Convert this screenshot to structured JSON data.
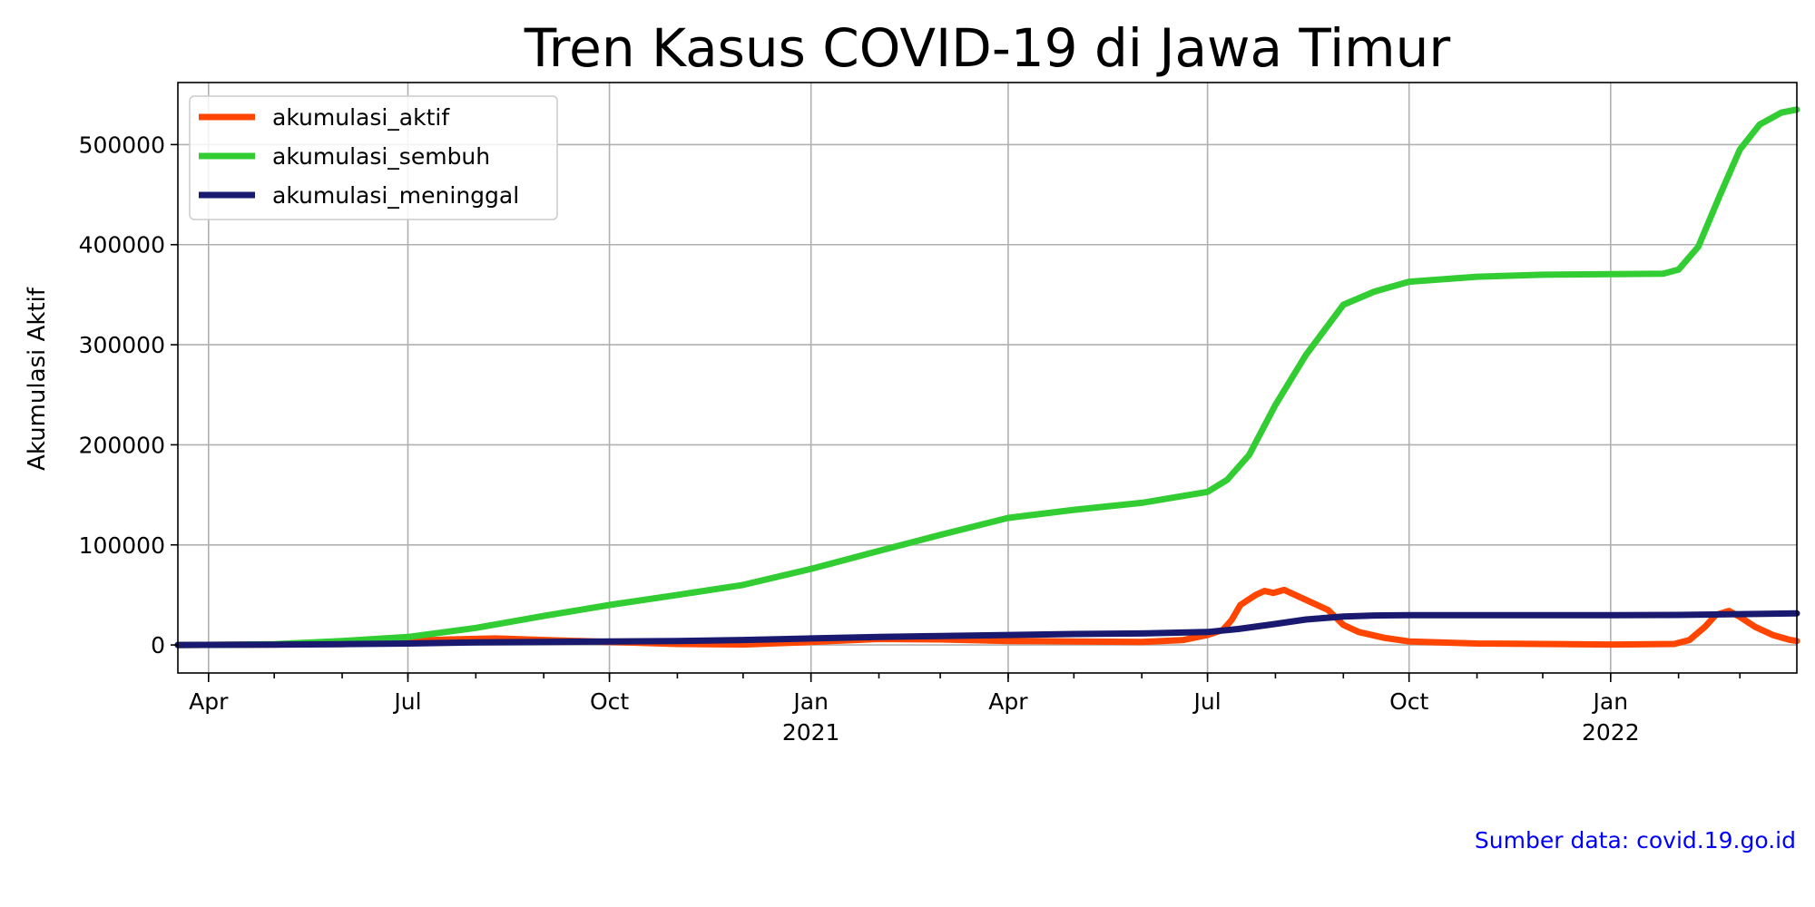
{
  "source_text": "Sumber data: covid.19.go.id",
  "source_color": "#0000ff",
  "chart_data": {
    "type": "line",
    "title": "Tren Kasus COVID-19 di Jawa Timur",
    "xlabel": "",
    "ylabel": "Akumulasi Aktif",
    "x_range": [
      "2020-03-18",
      "2022-03-27"
    ],
    "ylim": [
      -28000,
      562000
    ],
    "grid": true,
    "legend_position": "top-left",
    "x_ticks": [
      {
        "date": "2020-04-01",
        "label": "Apr",
        "year": ""
      },
      {
        "date": "2020-07-01",
        "label": "Jul",
        "year": ""
      },
      {
        "date": "2020-10-01",
        "label": "Oct",
        "year": ""
      },
      {
        "date": "2021-01-01",
        "label": "Jan",
        "year": "2021"
      },
      {
        "date": "2021-04-01",
        "label": "Apr",
        "year": ""
      },
      {
        "date": "2021-07-01",
        "label": "Jul",
        "year": ""
      },
      {
        "date": "2021-10-01",
        "label": "Oct",
        "year": ""
      },
      {
        "date": "2022-01-01",
        "label": "Jan",
        "year": "2022"
      }
    ],
    "y_ticks": [
      0,
      100000,
      200000,
      300000,
      400000,
      500000
    ],
    "series": [
      {
        "name": "akumulasi_aktif",
        "color": "#ff4500",
        "points": [
          [
            "2020-03-18",
            0
          ],
          [
            "2020-05-01",
            500
          ],
          [
            "2020-06-01",
            2000
          ],
          [
            "2020-07-01",
            4000
          ],
          [
            "2020-07-20",
            5500
          ],
          [
            "2020-08-10",
            6500
          ],
          [
            "2020-09-01",
            5000
          ],
          [
            "2020-10-01",
            3000
          ],
          [
            "2020-11-01",
            1000
          ],
          [
            "2020-12-01",
            500
          ],
          [
            "2021-01-01",
            3000
          ],
          [
            "2021-02-01",
            6000
          ],
          [
            "2021-03-01",
            5500
          ],
          [
            "2021-04-01",
            4000
          ],
          [
            "2021-05-01",
            3500
          ],
          [
            "2021-06-01",
            3000
          ],
          [
            "2021-06-20",
            5000
          ],
          [
            "2021-07-01",
            10000
          ],
          [
            "2021-07-08",
            15000
          ],
          [
            "2021-07-12",
            25000
          ],
          [
            "2021-07-16",
            40000
          ],
          [
            "2021-07-23",
            50000
          ],
          [
            "2021-07-27",
            54000
          ],
          [
            "2021-07-31",
            52000
          ],
          [
            "2021-08-05",
            55000
          ],
          [
            "2021-08-10",
            50000
          ],
          [
            "2021-08-18",
            42000
          ],
          [
            "2021-08-25",
            35000
          ],
          [
            "2021-09-01",
            20000
          ],
          [
            "2021-09-08",
            13000
          ],
          [
            "2021-09-20",
            7000
          ],
          [
            "2021-10-01",
            3500
          ],
          [
            "2021-11-01",
            1500
          ],
          [
            "2021-12-01",
            1000
          ],
          [
            "2022-01-01",
            500
          ],
          [
            "2022-01-30",
            1000
          ],
          [
            "2022-02-06",
            5000
          ],
          [
            "2022-02-13",
            18000
          ],
          [
            "2022-02-18",
            30000
          ],
          [
            "2022-02-24",
            34000
          ],
          [
            "2022-03-01",
            28000
          ],
          [
            "2022-03-08",
            18000
          ],
          [
            "2022-03-16",
            10000
          ],
          [
            "2022-03-24",
            5000
          ],
          [
            "2022-03-27",
            4000
          ]
        ]
      },
      {
        "name": "akumulasi_sembuh",
        "color": "#32cd32",
        "points": [
          [
            "2020-03-18",
            0
          ],
          [
            "2020-04-15",
            300
          ],
          [
            "2020-05-01",
            800
          ],
          [
            "2020-06-01",
            4000
          ],
          [
            "2020-07-01",
            8000
          ],
          [
            "2020-08-01",
            17000
          ],
          [
            "2020-09-01",
            29000
          ],
          [
            "2020-10-01",
            40000
          ],
          [
            "2020-11-01",
            50000
          ],
          [
            "2020-12-01",
            60000
          ],
          [
            "2021-01-01",
            76000
          ],
          [
            "2021-02-01",
            94000
          ],
          [
            "2021-03-01",
            110000
          ],
          [
            "2021-04-01",
            127000
          ],
          [
            "2021-05-01",
            135000
          ],
          [
            "2021-06-01",
            142000
          ],
          [
            "2021-07-01",
            153000
          ],
          [
            "2021-07-10",
            165000
          ],
          [
            "2021-07-20",
            190000
          ],
          [
            "2021-08-01",
            240000
          ],
          [
            "2021-08-15",
            290000
          ],
          [
            "2021-09-01",
            340000
          ],
          [
            "2021-09-15",
            353000
          ],
          [
            "2021-10-01",
            363000
          ],
          [
            "2021-11-01",
            368000
          ],
          [
            "2021-12-01",
            370000
          ],
          [
            "2022-01-01",
            370500
          ],
          [
            "2022-01-25",
            371000
          ],
          [
            "2022-02-01",
            375000
          ],
          [
            "2022-02-10",
            398000
          ],
          [
            "2022-02-20",
            450000
          ],
          [
            "2022-03-01",
            495000
          ],
          [
            "2022-03-10",
            520000
          ],
          [
            "2022-03-20",
            532000
          ],
          [
            "2022-03-27",
            535000
          ]
        ]
      },
      {
        "name": "akumulasi_meninggal",
        "color": "#191970",
        "points": [
          [
            "2020-03-18",
            0
          ],
          [
            "2020-05-01",
            300
          ],
          [
            "2020-06-01",
            800
          ],
          [
            "2020-07-01",
            1500
          ],
          [
            "2020-08-01",
            2500
          ],
          [
            "2020-09-01",
            3000
          ],
          [
            "2020-10-01",
            3500
          ],
          [
            "2020-11-01",
            4000
          ],
          [
            "2020-12-01",
            5000
          ],
          [
            "2021-01-01",
            6500
          ],
          [
            "2021-02-01",
            8000
          ],
          [
            "2021-03-01",
            9000
          ],
          [
            "2021-04-01",
            10000
          ],
          [
            "2021-05-01",
            11000
          ],
          [
            "2021-06-01",
            11500
          ],
          [
            "2021-07-01",
            13000
          ],
          [
            "2021-07-15",
            16000
          ],
          [
            "2021-08-01",
            21000
          ],
          [
            "2021-08-15",
            25500
          ],
          [
            "2021-09-01",
            28500
          ],
          [
            "2021-09-15",
            29500
          ],
          [
            "2021-10-01",
            29700
          ],
          [
            "2022-01-01",
            29800
          ],
          [
            "2022-02-01",
            30000
          ],
          [
            "2022-03-01",
            30800
          ],
          [
            "2022-03-27",
            31500
          ]
        ]
      }
    ]
  }
}
